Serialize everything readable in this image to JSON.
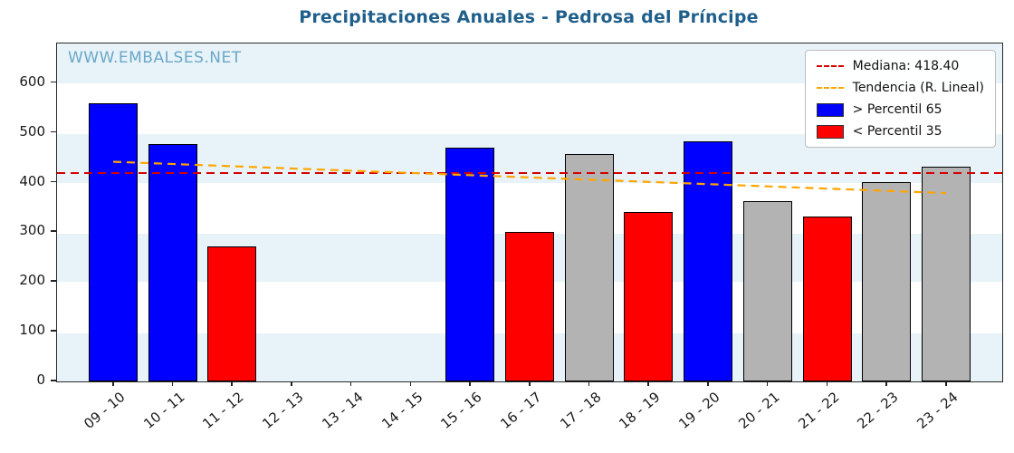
{
  "chart_data": {
    "type": "bar",
    "title": "Precipitaciones Anuales - Pedrosa del Príncipe",
    "watermark": "WWW.EMBALSES.NET",
    "categories": [
      "09 - 10",
      "10 - 11",
      "11 - 12",
      "12 - 13",
      "13 - 14",
      "14 - 15",
      "15 - 16",
      "16 - 17",
      "17 - 18",
      "18 - 19",
      "19 - 20",
      "20 - 21",
      "21 - 22",
      "22 - 23",
      "23 - 24"
    ],
    "values": [
      560,
      477,
      272,
      0,
      0,
      0,
      471,
      301,
      457,
      341,
      484,
      363,
      332,
      401,
      433
    ],
    "bar_colors": [
      "blue",
      "blue",
      "red",
      "none",
      "none",
      "none",
      "blue",
      "red",
      "gray",
      "red",
      "blue",
      "gray",
      "red",
      "gray",
      "gray"
    ],
    "palette": {
      "blue": "#0000ff",
      "red": "#ff0000",
      "gray": "#b3b3b3"
    },
    "median": {
      "value": 418.4,
      "label": "Mediana: 418.40",
      "color": "#d40000"
    },
    "trend": {
      "label": "Tendencia (R. Lineal)",
      "color": "#ffa500",
      "start_value": 442,
      "end_value": 379
    },
    "legend": [
      {
        "swatch": "dashed-line",
        "color": "#d40000",
        "label": "Mediana: 418.40"
      },
      {
        "swatch": "dashed-line",
        "color": "#ffa500",
        "label": "Tendencia (R. Lineal)"
      },
      {
        "swatch": "patch",
        "color": "#0000ff",
        "label": "> Percentil 65"
      },
      {
        "swatch": "patch",
        "color": "#ff0000",
        "label": "< Percentil 35"
      }
    ],
    "xlabel": "",
    "ylabel": "",
    "ylim": [
      0,
      680
    ],
    "yticks": [
      0,
      100,
      200,
      300,
      400,
      500,
      600
    ],
    "grid": true,
    "legend_position": "upper right"
  }
}
